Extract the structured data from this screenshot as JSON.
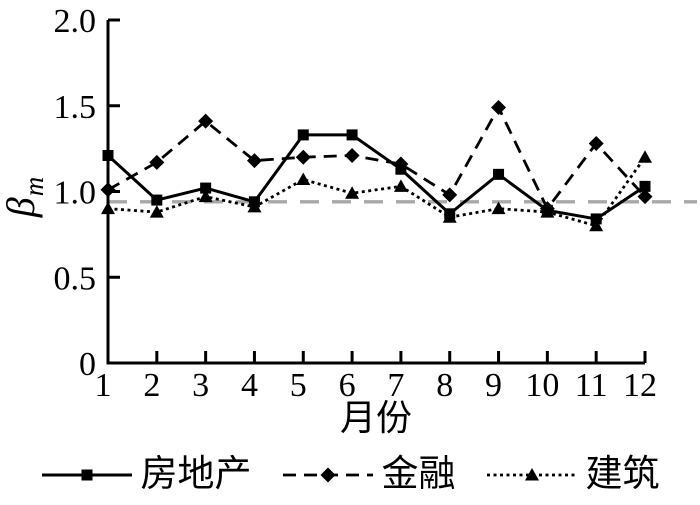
{
  "figure": {
    "background": "#ffffff",
    "axis_color": "#000000",
    "series_color": "#000000"
  },
  "chart_data": {
    "type": "line",
    "title": "",
    "xlabel": "月份",
    "ylabel": {
      "symbol": "β",
      "subscript": "m"
    },
    "x": [
      1,
      2,
      3,
      4,
      5,
      6,
      7,
      8,
      9,
      10,
      11,
      12
    ],
    "xlim": [
      1,
      12
    ],
    "ylim": [
      0,
      2.0
    ],
    "yticks": [
      {
        "value": 0,
        "label": "0"
      },
      {
        "value": 0.5,
        "label": "0.5"
      },
      {
        "value": 1.0,
        "label": "1.0"
      },
      {
        "value": 1.5,
        "label": "1.5"
      },
      {
        "value": 2.0,
        "label": "2.0"
      }
    ],
    "grid": false,
    "legend_position": "bottom",
    "reference_line": {
      "value": 0.94,
      "style": "dashed",
      "color": "#a8a8a8"
    },
    "series": [
      {
        "key": "real-estate",
        "name": "房地产",
        "marker": "square",
        "line_style": "solid",
        "color": "#000000",
        "values": [
          1.21,
          0.95,
          1.02,
          0.94,
          1.33,
          1.33,
          1.13,
          0.87,
          1.1,
          0.89,
          0.84,
          1.03
        ]
      },
      {
        "key": "finance",
        "name": "金融",
        "marker": "diamond",
        "line_style": "dashed",
        "color": "#000000",
        "values": [
          1.01,
          1.17,
          1.41,
          1.18,
          1.2,
          1.21,
          1.16,
          0.98,
          1.49,
          0.9,
          1.28,
          0.97
        ]
      },
      {
        "key": "construction",
        "name": "建筑",
        "marker": "triangle",
        "line_style": "dotted",
        "color": "#000000",
        "values": [
          0.9,
          0.88,
          0.97,
          0.91,
          1.07,
          0.99,
          1.03,
          0.85,
          0.9,
          0.88,
          0.8,
          1.2
        ]
      }
    ]
  }
}
